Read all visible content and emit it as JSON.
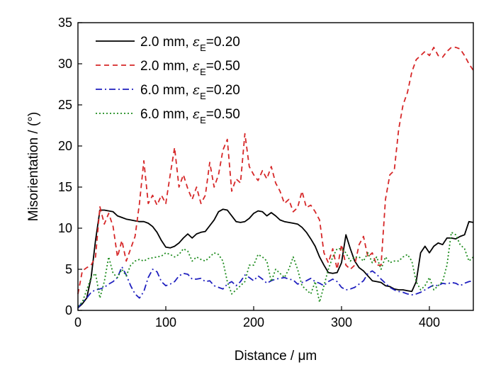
{
  "chart_data": {
    "type": "line",
    "xlabel": "Distance / μm",
    "ylabel": "Misorientation / (°)",
    "xlim": [
      0,
      450
    ],
    "ylim": [
      0,
      35
    ],
    "xticks": [
      0,
      100,
      200,
      300,
      400
    ],
    "yticks": [
      0,
      5,
      10,
      15,
      20,
      25,
      30,
      35
    ],
    "grid": false,
    "legend_position": "top-left",
    "series": [
      {
        "name": "2.0 mm, εE=0.20",
        "label_main": "2.0 mm, ",
        "label_sym": "ε",
        "label_sub": "E",
        "label_val": "=0.20",
        "color": "#000000",
        "dash": "solid",
        "x": [
          0,
          5,
          10,
          15,
          20,
          25,
          30,
          35,
          40,
          45,
          50,
          55,
          60,
          65,
          70,
          75,
          80,
          85,
          90,
          95,
          100,
          105,
          110,
          115,
          120,
          125,
          130,
          135,
          140,
          145,
          150,
          155,
          160,
          165,
          170,
          175,
          180,
          185,
          190,
          195,
          200,
          205,
          210,
          215,
          220,
          225,
          230,
          235,
          240,
          245,
          250,
          255,
          260,
          265,
          270,
          275,
          280,
          285,
          290,
          295,
          300,
          305,
          310,
          315,
          320,
          325,
          330,
          335,
          340,
          345,
          350,
          355,
          360,
          365,
          370,
          375,
          380,
          385,
          390,
          395,
          400,
          405,
          410,
          415,
          420,
          425,
          430,
          435,
          440,
          445,
          450
        ],
        "y": [
          0.3,
          0.8,
          1.5,
          4.0,
          8.5,
          12.2,
          12.2,
          12.1,
          12.0,
          11.5,
          11.3,
          11.1,
          11.0,
          10.9,
          10.8,
          10.8,
          10.6,
          10.2,
          9.5,
          8.5,
          7.7,
          7.6,
          7.8,
          8.2,
          8.8,
          9.3,
          8.8,
          9.3,
          9.5,
          9.6,
          10.3,
          11.0,
          12.0,
          12.3,
          12.2,
          11.5,
          10.8,
          10.7,
          10.8,
          11.2,
          11.8,
          12.1,
          12.0,
          11.5,
          11.9,
          11.5,
          11.0,
          10.8,
          10.7,
          10.6,
          10.5,
          10.1,
          9.5,
          8.7,
          7.8,
          6.5,
          5.5,
          4.6,
          4.5,
          4.6,
          5.8,
          9.2,
          7.5,
          6.0,
          5.2,
          4.8,
          4.2,
          3.6,
          3.5,
          3.4,
          3.0,
          2.9,
          2.6,
          2.5,
          2.5,
          2.4,
          2.3,
          3.5,
          7.0,
          7.8,
          7.0,
          7.8,
          8.2,
          8.0,
          8.8,
          8.8,
          8.7,
          9.0,
          9.2,
          10.8,
          10.7
        ]
      },
      {
        "name": "2.0 mm, εE=0.50",
        "label_main": "2.0 mm, ",
        "label_sym": "ε",
        "label_sub": "E",
        "label_val": "=0.50",
        "color": "#d62728",
        "dash": "7,5",
        "x": [
          0,
          5,
          10,
          15,
          20,
          25,
          30,
          35,
          40,
          45,
          50,
          55,
          60,
          65,
          70,
          75,
          80,
          85,
          90,
          95,
          100,
          105,
          110,
          115,
          120,
          125,
          130,
          135,
          140,
          145,
          150,
          155,
          160,
          165,
          170,
          175,
          180,
          185,
          190,
          195,
          200,
          205,
          210,
          215,
          220,
          225,
          230,
          235,
          240,
          245,
          250,
          255,
          260,
          265,
          270,
          275,
          280,
          285,
          290,
          295,
          300,
          305,
          310,
          315,
          320,
          325,
          330,
          335,
          340,
          345,
          350,
          355,
          360,
          365,
          370,
          375,
          380,
          385,
          390,
          395,
          400,
          405,
          410,
          415,
          420,
          425,
          430,
          435,
          440,
          445,
          450
        ],
        "y": [
          2.0,
          4.8,
          5.2,
          5.5,
          6.5,
          12.6,
          10.5,
          11.8,
          10.2,
          6.5,
          8.5,
          6.0,
          7.5,
          9.0,
          13.0,
          18.2,
          13.0,
          14.0,
          12.8,
          14.0,
          13.0,
          16.5,
          19.8,
          15.0,
          16.5,
          14.8,
          13.5,
          15.0,
          13.0,
          14.0,
          18.0,
          15.0,
          16.5,
          19.5,
          20.8,
          14.5,
          16.0,
          15.5,
          21.5,
          17.5,
          16.5,
          15.8,
          17.0,
          16.0,
          17.5,
          15.5,
          14.5,
          13.0,
          13.5,
          12.0,
          12.5,
          14.5,
          12.5,
          12.8,
          12.0,
          11.0,
          7.0,
          5.8,
          7.5,
          5.0,
          8.0,
          5.5,
          5.0,
          5.5,
          8.0,
          9.0,
          6.5,
          7.0,
          5.5,
          5.5,
          13.5,
          16.5,
          17.0,
          22.0,
          25.0,
          26.5,
          29.0,
          30.5,
          31.0,
          31.5,
          31.0,
          32.0,
          31.0,
          30.8,
          31.5,
          32.0,
          32.0,
          31.8,
          31.0,
          30.0,
          29.2
        ]
      },
      {
        "name": "6.0 mm, εE=0.20",
        "label_main": "6.0 mm, ",
        "label_sym": "ε",
        "label_sub": "E",
        "label_val": "=0.20",
        "color": "#1f1fbf",
        "dash": "9,4,2,4",
        "x": [
          0,
          5,
          10,
          15,
          20,
          25,
          30,
          35,
          40,
          45,
          50,
          55,
          60,
          65,
          70,
          75,
          80,
          85,
          90,
          95,
          100,
          105,
          110,
          115,
          120,
          125,
          130,
          135,
          140,
          145,
          150,
          155,
          160,
          165,
          170,
          175,
          180,
          185,
          190,
          195,
          200,
          205,
          210,
          215,
          220,
          225,
          230,
          235,
          240,
          245,
          250,
          255,
          260,
          265,
          270,
          275,
          280,
          285,
          290,
          295,
          300,
          305,
          310,
          315,
          320,
          325,
          330,
          335,
          340,
          345,
          350,
          355,
          360,
          365,
          370,
          375,
          380,
          385,
          390,
          395,
          400,
          405,
          410,
          415,
          420,
          425,
          430,
          435,
          440,
          445,
          450
        ],
        "y": [
          0.3,
          1.0,
          1.5,
          2.2,
          2.5,
          2.6,
          2.8,
          3.2,
          3.5,
          4.0,
          5.3,
          4.3,
          3.0,
          2.0,
          1.5,
          2.3,
          4.0,
          5.0,
          4.7,
          3.5,
          3.0,
          3.2,
          3.5,
          4.2,
          4.5,
          4.4,
          3.8,
          3.8,
          3.9,
          3.5,
          3.6,
          3.0,
          2.8,
          2.6,
          3.2,
          3.5,
          3.0,
          3.5,
          4.3,
          4.0,
          3.6,
          4.2,
          3.8,
          3.3,
          3.6,
          3.8,
          3.9,
          4.0,
          3.8,
          3.7,
          3.2,
          3.4,
          3.6,
          3.9,
          3.5,
          3.3,
          3.0,
          3.5,
          3.8,
          3.5,
          2.8,
          2.5,
          2.6,
          2.8,
          3.2,
          3.6,
          4.5,
          4.8,
          4.4,
          3.8,
          3.3,
          2.8,
          2.5,
          2.3,
          2.2,
          2.0,
          1.9,
          2.0,
          2.2,
          2.5,
          2.8,
          3.1,
          3.0,
          3.3,
          3.2,
          3.4,
          3.3,
          3.0,
          3.3,
          3.5,
          3.6
        ]
      },
      {
        "name": "6.0 mm, εE=0.50",
        "label_main": "6.0 mm,  ",
        "label_sym": "ε",
        "label_sub": "E",
        "label_val": "=0.50",
        "color": "#1e8c1e",
        "dash": "2,3",
        "x": [
          0,
          5,
          10,
          15,
          20,
          25,
          30,
          35,
          40,
          45,
          50,
          55,
          60,
          65,
          70,
          75,
          80,
          85,
          90,
          95,
          100,
          105,
          110,
          115,
          120,
          125,
          130,
          135,
          140,
          145,
          150,
          155,
          160,
          165,
          170,
          175,
          180,
          185,
          190,
          195,
          200,
          205,
          210,
          215,
          220,
          225,
          230,
          235,
          240,
          245,
          250,
          255,
          260,
          265,
          270,
          275,
          280,
          285,
          290,
          295,
          300,
          305,
          310,
          315,
          320,
          325,
          330,
          335,
          340,
          345,
          350,
          355,
          360,
          365,
          370,
          375,
          380,
          385,
          390,
          395,
          400,
          405,
          410,
          415,
          420,
          425,
          430,
          435,
          440,
          445,
          450
        ],
        "y": [
          0.5,
          1.0,
          2.5,
          4.0,
          4.5,
          1.5,
          3.5,
          6.5,
          4.5,
          4.0,
          5.0,
          4.2,
          5.5,
          6.0,
          6.2,
          6.0,
          6.3,
          6.4,
          6.5,
          6.6,
          7.0,
          6.8,
          6.5,
          6.8,
          7.5,
          7.2,
          6.0,
          6.5,
          6.2,
          6.0,
          6.5,
          7.0,
          6.8,
          6.0,
          3.5,
          2.0,
          2.5,
          3.0,
          3.5,
          5.5,
          5.5,
          6.8,
          6.5,
          6.0,
          3.5,
          5.0,
          4.5,
          4.0,
          5.0,
          6.5,
          5.0,
          3.0,
          2.5,
          2.0,
          3.5,
          1.0,
          3.0,
          5.0,
          6.5,
          7.5,
          7.5,
          7.0,
          6.0,
          6.5,
          6.5,
          6.0,
          7.0,
          5.8,
          6.5,
          5.0,
          6.5,
          5.8,
          6.0,
          6.0,
          6.5,
          6.8,
          6.0,
          3.5,
          2.5,
          3.0,
          4.0,
          2.5,
          3.0,
          3.5,
          5.5,
          9.5,
          9.2,
          8.0,
          7.5,
          6.0,
          6.5
        ]
      }
    ]
  }
}
